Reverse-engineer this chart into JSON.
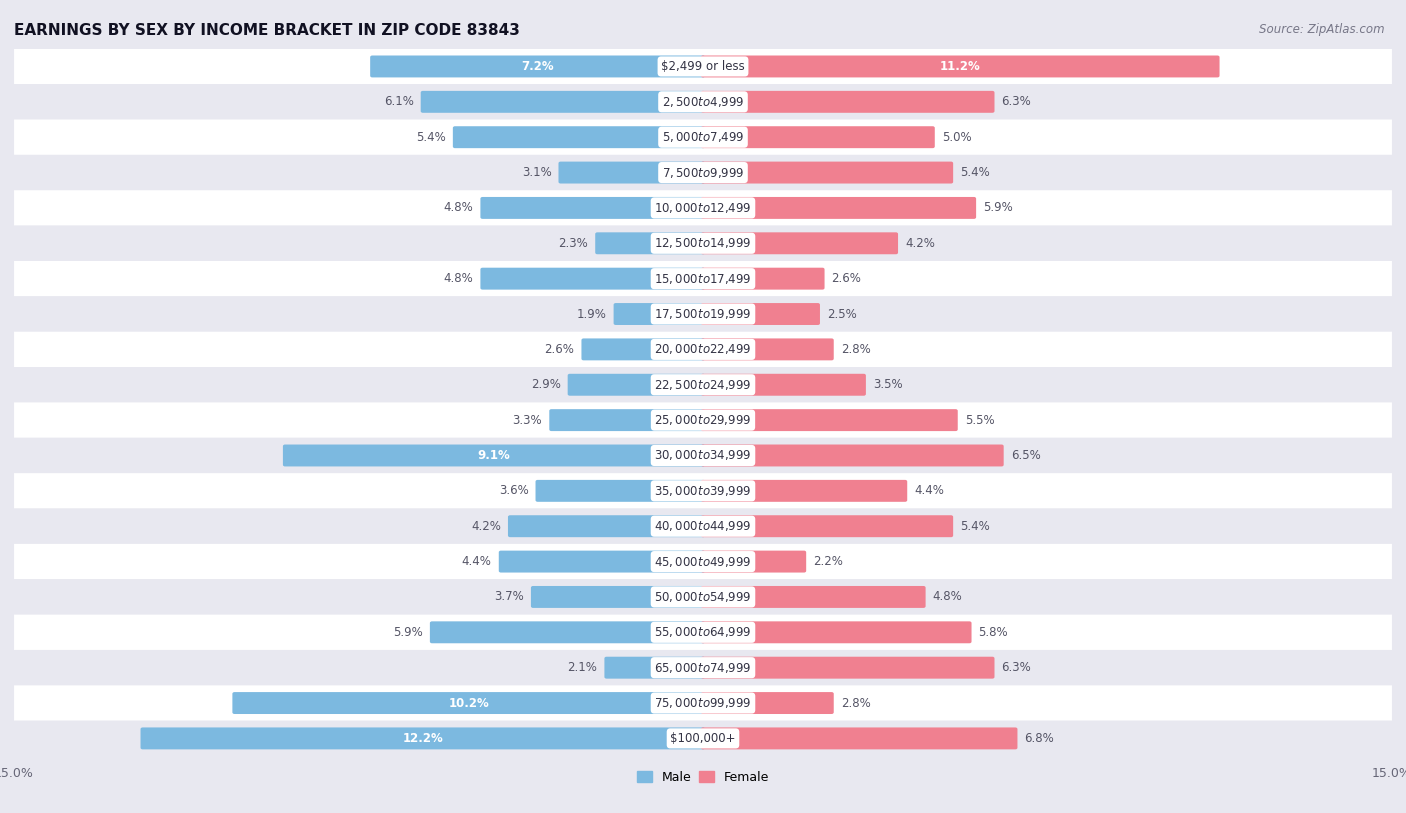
{
  "title": "EARNINGS BY SEX BY INCOME BRACKET IN ZIP CODE 83843",
  "source": "Source: ZipAtlas.com",
  "categories": [
    "$2,499 or less",
    "$2,500 to $4,999",
    "$5,000 to $7,499",
    "$7,500 to $9,999",
    "$10,000 to $12,499",
    "$12,500 to $14,999",
    "$15,000 to $17,499",
    "$17,500 to $19,999",
    "$20,000 to $22,499",
    "$22,500 to $24,999",
    "$25,000 to $29,999",
    "$30,000 to $34,999",
    "$35,000 to $39,999",
    "$40,000 to $44,999",
    "$45,000 to $49,999",
    "$50,000 to $54,999",
    "$55,000 to $64,999",
    "$65,000 to $74,999",
    "$75,000 to $99,999",
    "$100,000+"
  ],
  "male_values": [
    7.2,
    6.1,
    5.4,
    3.1,
    4.8,
    2.3,
    4.8,
    1.9,
    2.6,
    2.9,
    3.3,
    9.1,
    3.6,
    4.2,
    4.4,
    3.7,
    5.9,
    2.1,
    10.2,
    12.2
  ],
  "female_values": [
    11.2,
    6.3,
    5.0,
    5.4,
    5.9,
    4.2,
    2.6,
    2.5,
    2.8,
    3.5,
    5.5,
    6.5,
    4.4,
    5.4,
    2.2,
    4.8,
    5.8,
    6.3,
    2.8,
    6.8
  ],
  "male_color": "#7cb9e0",
  "female_color": "#f08090",
  "xlim": 15.0,
  "background_color": "#e8e8f0",
  "row_color_even": "#ffffff",
  "row_color_odd": "#e8e8f0",
  "title_fontsize": 11,
  "source_fontsize": 8.5,
  "label_fontsize": 8.5,
  "cat_fontsize": 8.5,
  "inside_label_threshold": 7.0
}
